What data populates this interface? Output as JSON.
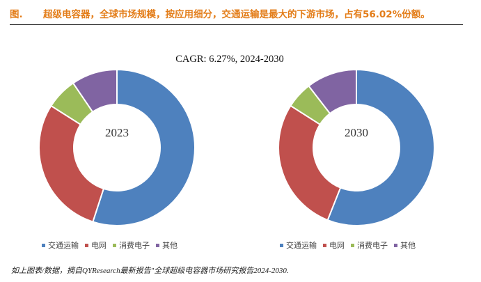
{
  "figure": {
    "label": "图.",
    "title": "超级电容器，全球市场规模，按应用细分，交通运输是最大的下游市场，占有56.02%份额。",
    "cagr_label": "CAGR: 6.27%, 2024-2030",
    "footnote": "如上图表/数据，摘自QYResearch最新报告\"全球超级电容器市场研究报告2024-2030.",
    "colors": {
      "title": "#e37d19",
      "transport": "#4e81be",
      "grid": "#c0504d",
      "consumer": "#9bbb59",
      "other": "#8064a2"
    }
  },
  "legend_items": [
    "交通运输",
    "电网",
    "消费电子",
    "其他"
  ],
  "chart_data": [
    {
      "type": "pie",
      "center_label": "2023",
      "categories": [
        "交通运输",
        "电网",
        "消费电子",
        "其他"
      ],
      "values": [
        55,
        29,
        6.5,
        9.5
      ]
    },
    {
      "type": "pie",
      "center_label": "2030",
      "categories": [
        "交通运输",
        "电网",
        "消费电子",
        "其他"
      ],
      "values": [
        56.02,
        28,
        5.5,
        10.48
      ]
    }
  ]
}
